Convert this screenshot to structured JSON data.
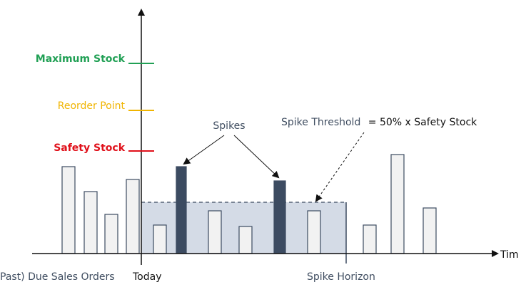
{
  "labels": {
    "max_stock": "Maximum Stock",
    "reorder_point": "Reorder Point",
    "safety_stock": "Safety Stock",
    "spikes": "Spikes",
    "spike_threshold": "Spike Threshold",
    "threshold_formula": "= 50% x Safety Stock",
    "time_axis": "Tim",
    "past_due": "Past) Due Sales Orders",
    "today": "Today",
    "spike_horizon": "Spike Horizon"
  },
  "colors": {
    "max_stock": "#21a055",
    "reorder_point": "#f0b400",
    "safety_stock": "#e0101a",
    "text_dark": "#3f4d60",
    "spike_bar": "#3c4b61",
    "normal_bar_fill": "#f2f2f2",
    "horizon_fill": "#d4dbe6"
  },
  "chart_data": {
    "type": "bar",
    "bars": [
      {
        "group": "past",
        "kind": "normal",
        "value": 122
      },
      {
        "group": "past",
        "kind": "normal",
        "value": 87
      },
      {
        "group": "past",
        "kind": "normal",
        "value": 55
      },
      {
        "group": "past",
        "kind": "normal",
        "value": 104
      },
      {
        "group": "horizon",
        "kind": "normal",
        "value": 40
      },
      {
        "group": "horizon",
        "kind": "spike",
        "value": 122
      },
      {
        "group": "horizon",
        "kind": "normal",
        "value": 60
      },
      {
        "group": "horizon",
        "kind": "normal",
        "value": 38
      },
      {
        "group": "horizon",
        "kind": "spike",
        "value": 102
      },
      {
        "group": "horizon",
        "kind": "normal",
        "value": 60
      },
      {
        "group": "future",
        "kind": "normal",
        "value": 40
      },
      {
        "group": "future",
        "kind": "normal",
        "value": 139
      },
      {
        "group": "future",
        "kind": "normal",
        "value": 64
      }
    ],
    "levels": {
      "maximum_stock": 266,
      "reorder_point": 200,
      "safety_stock": 143,
      "spike_threshold": 71.5
    }
  }
}
